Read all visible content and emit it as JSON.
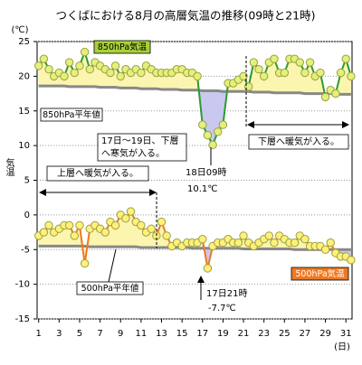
{
  "chart_data": {
    "type": "line",
    "title": "つくばにおける8月の高層気温の推移(09時と21時)",
    "y_unit": "(℃)",
    "x_unit": "(日)",
    "y_label": "気温",
    "xlim": [
      0.85,
      31.6
    ],
    "ylim": [
      -15,
      25
    ],
    "xticks": [
      1,
      3,
      5,
      7,
      9,
      11,
      13,
      15,
      17,
      19,
      21,
      23,
      25,
      27,
      29,
      31
    ],
    "yticks": [
      25,
      20,
      15,
      10,
      5,
      0,
      -5,
      -10,
      -15
    ],
    "grid": true,
    "x": [
      1,
      1.5,
      2,
      2.5,
      3,
      3.5,
      4,
      4.5,
      5,
      5.5,
      6,
      6.5,
      7,
      7.5,
      8,
      8.5,
      9,
      9.5,
      10,
      10.5,
      11,
      11.5,
      12,
      12.5,
      13,
      13.5,
      14,
      14.5,
      15,
      15.5,
      16,
      16.5,
      17,
      17.5,
      18,
      18.5,
      19,
      19.5,
      20,
      20.5,
      21,
      21.5,
      22,
      22.5,
      23,
      23.5,
      24,
      24.5,
      25,
      25.5,
      26,
      26.5,
      27,
      27.5,
      28,
      28.5,
      29,
      29.5,
      30,
      30.5,
      31,
      31.5
    ],
    "series": [
      {
        "name": "850hPa気温",
        "color": "#2e9b2e",
        "marker": "#e4f07a",
        "normal_index": 0,
        "values": [
          21.5,
          22.5,
          21,
          20,
          20.5,
          20,
          22,
          20.5,
          21.5,
          23.5,
          21,
          22,
          21.5,
          21,
          20.5,
          21.5,
          20,
          21,
          20.5,
          21,
          20.5,
          21.5,
          21,
          20.5,
          20.5,
          20.5,
          20.5,
          21,
          21,
          20.5,
          20.5,
          20,
          13,
          11.5,
          10.1,
          12,
          13,
          19,
          19,
          19.5,
          20,
          18.5,
          22,
          21,
          20,
          22,
          22.5,
          20.5,
          20.5,
          22.5,
          22.5,
          22,
          20.5,
          22,
          20,
          20.5,
          17,
          18,
          17.5,
          20.5,
          22.5,
          20
        ]
      },
      {
        "name": "500hPa気温",
        "color": "#f07820",
        "marker": "#fff07a",
        "normal_index": 1,
        "values": [
          -3,
          -2.5,
          -1.5,
          -2.5,
          -2,
          -1.5,
          -1.5,
          -3,
          -1.5,
          -7,
          -2,
          -1.5,
          -2,
          -2.5,
          -1,
          -1.5,
          0,
          -0.5,
          0.5,
          -1,
          -1.5,
          -2.5,
          -2,
          -3,
          -1,
          -3,
          -4.5,
          -4,
          -4.5,
          -4,
          -4,
          -4,
          -3.5,
          -7.7,
          -4.5,
          -4,
          -4,
          -3.5,
          -4,
          -4,
          -3,
          -4,
          -4.5,
          -4,
          -3.5,
          -3,
          -4,
          -3,
          -3.5,
          -4,
          -4,
          -3,
          -3.5,
          -4.5,
          -4.5,
          -4.5,
          -5,
          -4,
          -5.5,
          -6,
          -6,
          -6.5
        ]
      }
    ],
    "normals": [
      {
        "name": "850hPa平年値",
        "color": "#888888",
        "values": [
          18.6,
          18.6,
          18.6,
          18.6,
          18.6,
          18.6,
          18.5,
          18.5,
          18.5,
          18.5,
          18.5,
          18.5,
          18.4,
          18.4,
          18.4,
          18.4,
          18.3,
          18.3,
          18.3,
          18.3,
          18.2,
          18.2,
          18.2,
          18.2,
          18.1,
          18.1,
          18.1,
          18.1,
          18,
          18,
          18,
          18,
          17.9,
          17.9,
          17.9,
          17.9,
          17.8,
          17.8,
          17.8,
          17.8,
          17.8,
          17.8,
          17.7,
          17.7,
          17.7,
          17.7,
          17.6,
          17.6,
          17.6,
          17.6,
          17.6,
          17.6,
          17.5,
          17.5,
          17.5,
          17.5,
          17.5,
          17.5,
          17.4,
          17.4,
          17.4,
          17.4
        ]
      },
      {
        "name": "500hPa平年値",
        "color": "#888888",
        "values": [
          -4.5,
          -4.5,
          -4.5,
          -4.5,
          -4.5,
          -4.5,
          -4.5,
          -4.5,
          -4.5,
          -4.5,
          -4.6,
          -4.6,
          -4.6,
          -4.6,
          -4.6,
          -4.6,
          -4.6,
          -4.6,
          -4.6,
          -4.6,
          -4.7,
          -4.7,
          -4.7,
          -4.7,
          -4.7,
          -4.7,
          -4.7,
          -4.7,
          -4.7,
          -4.7,
          -4.8,
          -4.8,
          -4.8,
          -4.8,
          -4.8,
          -4.8,
          -4.8,
          -4.8,
          -4.8,
          -4.8,
          -4.9,
          -4.9,
          -4.9,
          -4.9,
          -4.9,
          -4.9,
          -4.9,
          -4.9,
          -4.9,
          -4.9,
          -5,
          -5,
          -5,
          -5,
          -5,
          -5,
          -5,
          -5,
          -5,
          -5,
          -5,
          -5
        ]
      }
    ],
    "below_fill": "#c8c8f0",
    "above_fill": "#fbf5b0",
    "annotations": {
      "cold_low": [
        "17日～19日、下層",
        "へ寒気が入る。"
      ],
      "min850": [
        "18日09時",
        "10.1℃"
      ],
      "warm_low": "下層へ暖気が入る。",
      "warm_up": "上層へ暖気が入る。",
      "min500": [
        "17日21時",
        "-7.7℃"
      ]
    }
  }
}
